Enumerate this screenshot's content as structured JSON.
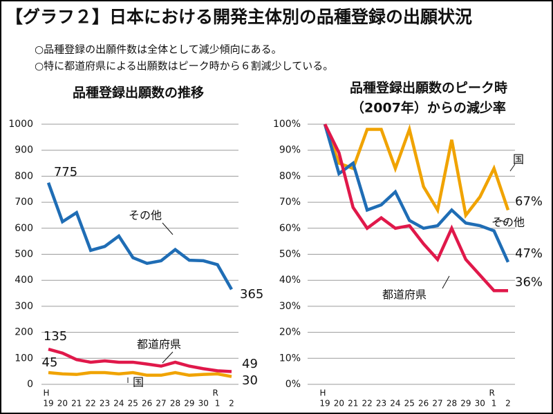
{
  "header": {
    "title": "【グラフ２】日本における開発主体別の品種登録の出願状況",
    "notes": [
      "○品種登録の出願件数は全体として減少傾向にある。",
      "○特に都道府県による出願数はピーク時から６割減少している。"
    ]
  },
  "chart_data": [
    {
      "type": "line",
      "title": [
        "品種登録出願数の推移"
      ],
      "categories": [
        "19",
        "20",
        "21",
        "22",
        "23",
        "24",
        "25",
        "26",
        "27",
        "28",
        "29",
        "30",
        "1",
        "2"
      ],
      "category_eras": [
        "H",
        null,
        null,
        null,
        null,
        null,
        null,
        null,
        null,
        null,
        null,
        null,
        "R",
        null
      ],
      "ylim": [
        0,
        1000
      ],
      "yticks": [
        0,
        100,
        200,
        300,
        400,
        500,
        600,
        700,
        800,
        900,
        1000
      ],
      "grid": true,
      "data_labels": "ends",
      "series": [
        {
          "name": "その他",
          "color": "#1f6db5",
          "values": [
            775,
            625,
            660,
            515,
            530,
            570,
            487,
            465,
            475,
            518,
            477,
            475,
            460,
            365
          ]
        },
        {
          "name": "都道府県",
          "color": "#e0184a",
          "values": [
            135,
            120,
            95,
            85,
            90,
            85,
            85,
            78,
            70,
            85,
            70,
            60,
            52,
            49
          ]
        },
        {
          "name": "国",
          "color": "#f0a300",
          "values": [
            45,
            40,
            38,
            45,
            45,
            40,
            45,
            35,
            35,
            45,
            35,
            38,
            40,
            30
          ]
        }
      ]
    },
    {
      "type": "line",
      "title": [
        "品種登録出願数のピーク時",
        "（2007年）からの減少率"
      ],
      "categories": [
        "19",
        "20",
        "21",
        "22",
        "23",
        "24",
        "25",
        "26",
        "27",
        "28",
        "29",
        "30",
        "1",
        "2"
      ],
      "category_eras": [
        "H",
        null,
        null,
        null,
        null,
        null,
        null,
        null,
        null,
        null,
        null,
        null,
        "R",
        null
      ],
      "ylim": [
        0,
        100
      ],
      "yticks": [
        {
          "value": 0,
          "label": "0%"
        },
        {
          "value": 10,
          "label": "10%"
        },
        {
          "value": 20,
          "label": "20%"
        },
        {
          "value": 30,
          "label": "30%"
        },
        {
          "value": 40,
          "label": "40%"
        },
        {
          "value": 50,
          "label": "50%"
        },
        {
          "value": 60,
          "label": "60%"
        },
        {
          "value": 70,
          "label": "70%"
        },
        {
          "value": 80,
          "label": "80%"
        },
        {
          "value": 90,
          "label": "90%"
        },
        {
          "value": 100,
          "label": "100%"
        }
      ],
      "grid": true,
      "series": [
        {
          "name": "国",
          "color": "#f0a300",
          "values": [
            100,
            85,
            83,
            98,
            98,
            83,
            98,
            76,
            67,
            94,
            65,
            72,
            83,
            67
          ],
          "value_labels": [
            null,
            null,
            null,
            null,
            null,
            null,
            null,
            null,
            null,
            null,
            null,
            null,
            null,
            "67%"
          ]
        },
        {
          "name": "その他",
          "color": "#1f6db5",
          "values": [
            100,
            81,
            85,
            67,
            69,
            74,
            63,
            60,
            61,
            67,
            62,
            61,
            59,
            47
          ],
          "value_labels": [
            null,
            null,
            null,
            null,
            null,
            null,
            null,
            null,
            null,
            null,
            null,
            null,
            null,
            "47%"
          ]
        },
        {
          "name": "都道府県",
          "color": "#e0184a",
          "values": [
            100,
            89,
            68,
            60,
            64,
            60,
            61,
            54,
            48,
            60,
            48,
            42,
            36,
            36
          ],
          "value_labels": [
            null,
            null,
            null,
            null,
            null,
            null,
            null,
            null,
            null,
            null,
            null,
            null,
            null,
            "36%"
          ]
        }
      ]
    }
  ]
}
